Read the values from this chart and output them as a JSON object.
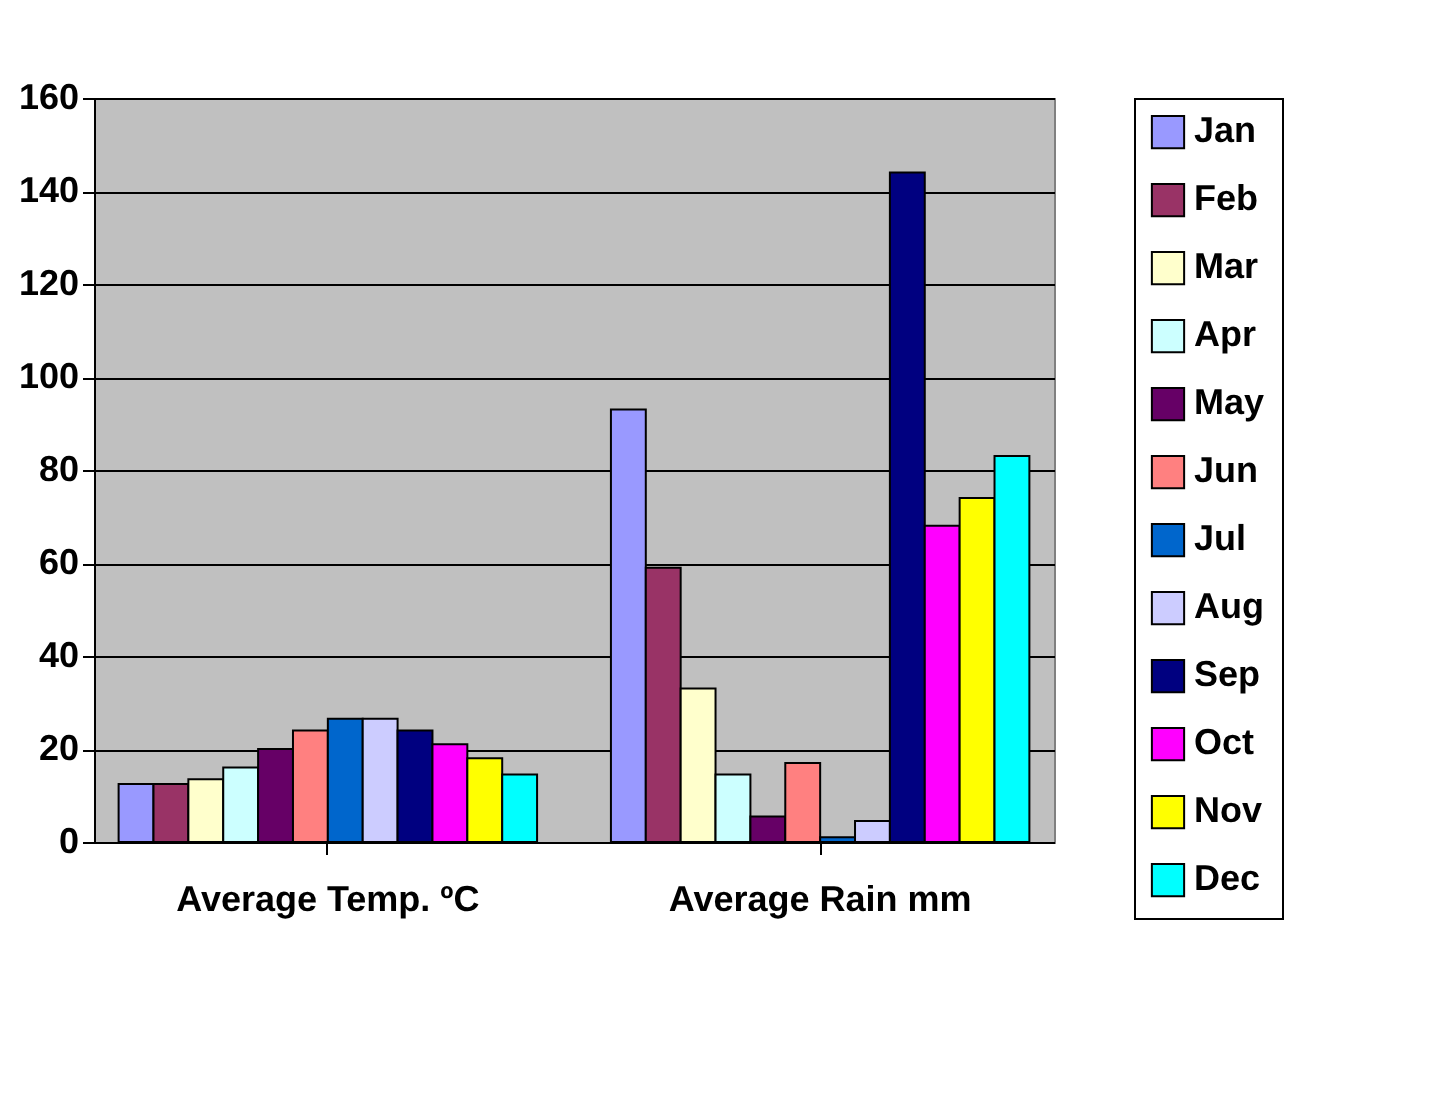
{
  "chart_data": {
    "type": "bar",
    "categories": [
      "Average Temp. ºC",
      "Average Rain mm"
    ],
    "series": [
      {
        "name": "Jan",
        "color": "#9999ff",
        "values": [
          12.5,
          93
        ]
      },
      {
        "name": "Feb",
        "color": "#993366",
        "values": [
          12.5,
          59
        ]
      },
      {
        "name": "Mar",
        "color": "#ffffcc",
        "values": [
          13.5,
          33
        ]
      },
      {
        "name": "Apr",
        "color": "#ccffff",
        "values": [
          16,
          14.5
        ]
      },
      {
        "name": "May",
        "color": "#660066",
        "values": [
          20,
          5.5
        ]
      },
      {
        "name": "Jun",
        "color": "#ff8080",
        "values": [
          24,
          17
        ]
      },
      {
        "name": "Jul",
        "color": "#0066cc",
        "values": [
          26.5,
          1
        ]
      },
      {
        "name": "Aug",
        "color": "#ccccff",
        "values": [
          26.5,
          4.5
        ]
      },
      {
        "name": "Sep",
        "color": "#000080",
        "values": [
          24,
          144
        ]
      },
      {
        "name": "Oct",
        "color": "#ff00ff",
        "values": [
          21,
          68
        ]
      },
      {
        "name": "Nov",
        "color": "#ffff00",
        "values": [
          18,
          74
        ]
      },
      {
        "name": "Dec",
        "color": "#00ffff",
        "values": [
          14.5,
          83
        ]
      }
    ],
    "ylim": [
      0,
      160
    ],
    "yticks": [
      0,
      20,
      40,
      60,
      80,
      100,
      120,
      140,
      160
    ],
    "grid": "y",
    "legend": "right"
  }
}
